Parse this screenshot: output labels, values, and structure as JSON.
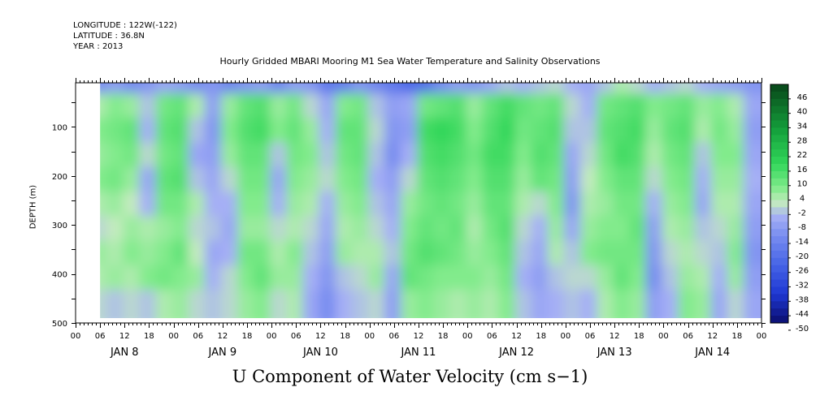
{
  "header": {
    "longitude": "LONGITUDE : 122W(-122)",
    "latitude": "LATITUDE : 36.8N",
    "year": "YEAR : 2013"
  },
  "chart_data": {
    "type": "heatmap",
    "title": "Hourly Gridded MBARI Mooring M1 Sea Water Temperature and Salinity Observations",
    "xlabel": "U Component of Water Velocity (cm s−1)",
    "ylabel": "DEPTH (m)",
    "xlim_hours": [
      0,
      168
    ],
    "data_start_hour": 6,
    "data_end_hour": 168,
    "ylim": [
      500,
      10
    ],
    "yticks": [
      100,
      200,
      300,
      400,
      500
    ],
    "hour_tick_labels": [
      "00",
      "06",
      "12",
      "18",
      "00",
      "06",
      "12",
      "18",
      "00",
      "06",
      "12",
      "18",
      "00",
      "06",
      "12",
      "18",
      "00",
      "06",
      "12",
      "18",
      "00",
      "06",
      "12",
      "18",
      "00",
      "06",
      "12",
      "18",
      "00"
    ],
    "day_labels": [
      "JAN  8",
      "JAN  9",
      "JAN 10",
      "JAN 11",
      "JAN 12",
      "JAN 13",
      "JAN 14"
    ],
    "colorbar": {
      "labels": [
        "46",
        "40",
        "34",
        "28",
        "22",
        "16",
        "10",
        "4",
        "-2",
        "-8",
        "-14",
        "-20",
        "-26",
        "-32",
        "-38",
        "-44",
        "-50"
      ],
      "range": [
        -50,
        49
      ],
      "step": 3
    },
    "field_columns": [
      {
        "hour": 6,
        "u": [
          -14,
          2,
          6,
          4,
          6,
          2,
          -2,
          4,
          2,
          -2
        ]
      },
      {
        "hour": 10,
        "u": [
          -10,
          6,
          8,
          6,
          8,
          4,
          0,
          2,
          4,
          -4
        ]
      },
      {
        "hour": 14,
        "u": [
          -14,
          4,
          10,
          8,
          4,
          0,
          4,
          6,
          2,
          -2
        ]
      },
      {
        "hour": 18,
        "u": [
          -12,
          -4,
          -6,
          -2,
          -8,
          -6,
          2,
          4,
          6,
          -4
        ]
      },
      {
        "hour": 22,
        "u": [
          -8,
          8,
          10,
          8,
          10,
          8,
          4,
          6,
          8,
          2
        ]
      },
      {
        "hour": 26,
        "u": [
          -10,
          10,
          12,
          10,
          12,
          8,
          6,
          10,
          6,
          4
        ]
      },
      {
        "hour": 30,
        "u": [
          -14,
          2,
          -4,
          -8,
          -4,
          2,
          -2,
          0,
          4,
          -2
        ]
      },
      {
        "hour": 34,
        "u": [
          -12,
          -10,
          -12,
          -10,
          -8,
          -6,
          -4,
          -8,
          -6,
          -4
        ]
      },
      {
        "hour": 38,
        "u": [
          -16,
          4,
          6,
          4,
          -2,
          -6,
          -8,
          -6,
          -2,
          -2
        ]
      },
      {
        "hour": 42,
        "u": [
          -12,
          10,
          12,
          10,
          8,
          6,
          4,
          8,
          6,
          4
        ]
      },
      {
        "hour": 46,
        "u": [
          -10,
          12,
          14,
          10,
          8,
          6,
          4,
          8,
          10,
          6
        ]
      },
      {
        "hour": 50,
        "u": [
          -16,
          4,
          6,
          -4,
          -8,
          -6,
          -2,
          2,
          4,
          -2
        ]
      },
      {
        "hour": 54,
        "u": [
          -10,
          8,
          10,
          8,
          6,
          4,
          2,
          6,
          4,
          2
        ]
      },
      {
        "hour": 58,
        "u": [
          -12,
          -2,
          4,
          6,
          4,
          2,
          -2,
          -4,
          -6,
          -8
        ]
      },
      {
        "hour": 62,
        "u": [
          -20,
          -8,
          -6,
          -4,
          -2,
          -6,
          -8,
          -10,
          -12,
          -14
        ]
      },
      {
        "hour": 66,
        "u": [
          -18,
          6,
          10,
          8,
          6,
          4,
          2,
          4,
          -4,
          -6
        ]
      },
      {
        "hour": 70,
        "u": [
          -12,
          8,
          10,
          10,
          8,
          6,
          4,
          2,
          -2,
          -4
        ]
      },
      {
        "hour": 74,
        "u": [
          -16,
          -4,
          -2,
          -4,
          -6,
          -4,
          -2,
          2,
          4,
          -2
        ]
      },
      {
        "hour": 78,
        "u": [
          -20,
          -10,
          -12,
          -14,
          -10,
          -8,
          -6,
          -4,
          -8,
          -10
        ]
      },
      {
        "hour": 82,
        "u": [
          -24,
          -8,
          -10,
          -6,
          -2,
          4,
          6,
          8,
          10,
          4
        ]
      },
      {
        "hour": 86,
        "u": [
          -22,
          8,
          14,
          12,
          10,
          8,
          10,
          12,
          8,
          6
        ]
      },
      {
        "hour": 90,
        "u": [
          -14,
          10,
          16,
          14,
          12,
          10,
          8,
          10,
          6,
          4
        ]
      },
      {
        "hour": 94,
        "u": [
          -10,
          12,
          14,
          12,
          10,
          8,
          10,
          8,
          6,
          2
        ]
      },
      {
        "hour": 98,
        "u": [
          -12,
          4,
          6,
          8,
          6,
          4,
          2,
          4,
          6,
          4
        ]
      },
      {
        "hour": 102,
        "u": [
          -8,
          10,
          12,
          14,
          12,
          10,
          8,
          6,
          4,
          2
        ]
      },
      {
        "hour": 106,
        "u": [
          -4,
          14,
          16,
          14,
          12,
          10,
          12,
          10,
          8,
          6
        ]
      },
      {
        "hour": 110,
        "u": [
          -6,
          10,
          8,
          6,
          4,
          2,
          -2,
          -4,
          -6,
          -4
        ]
      },
      {
        "hour": 114,
        "u": [
          -4,
          8,
          10,
          12,
          10,
          -2,
          -6,
          -8,
          -10,
          -8
        ]
      },
      {
        "hour": 118,
        "u": [
          -2,
          10,
          12,
          10,
          8,
          6,
          4,
          2,
          -4,
          -6
        ]
      },
      {
        "hour": 122,
        "u": [
          -6,
          -2,
          -4,
          -8,
          -10,
          -12,
          -8,
          -4,
          -2,
          -4
        ]
      },
      {
        "hour": 126,
        "u": [
          -8,
          -6,
          -4,
          -2,
          0,
          2,
          4,
          6,
          -2,
          -6
        ]
      },
      {
        "hour": 130,
        "u": [
          -4,
          8,
          10,
          8,
          6,
          4,
          6,
          8,
          4,
          2
        ]
      },
      {
        "hour": 134,
        "u": [
          2,
          10,
          12,
          14,
          10,
          8,
          6,
          8,
          10,
          6
        ]
      },
      {
        "hour": 138,
        "u": [
          -2,
          12,
          14,
          12,
          10,
          8,
          10,
          8,
          6,
          4
        ]
      },
      {
        "hour": 142,
        "u": [
          -6,
          6,
          4,
          2,
          -2,
          -6,
          -10,
          -12,
          -14,
          -10
        ]
      },
      {
        "hour": 146,
        "u": [
          -4,
          8,
          10,
          8,
          6,
          4,
          2,
          -2,
          -4,
          -6
        ]
      },
      {
        "hour": 150,
        "u": [
          -2,
          10,
          12,
          10,
          8,
          6,
          4,
          2,
          4,
          6
        ]
      },
      {
        "hour": 154,
        "u": [
          -6,
          4,
          2,
          -4,
          -6,
          -8,
          -4,
          -2,
          2,
          4
        ]
      },
      {
        "hour": 158,
        "u": [
          -8,
          6,
          8,
          6,
          4,
          2,
          -2,
          -4,
          -6,
          -8
        ]
      },
      {
        "hour": 162,
        "u": [
          -10,
          2,
          4,
          6,
          4,
          2,
          4,
          6,
          4,
          -2
        ]
      },
      {
        "hour": 166,
        "u": [
          -12,
          -8,
          -10,
          -8,
          -6,
          -8,
          -10,
          -12,
          -10,
          -8
        ]
      }
    ],
    "field_depths": [
      20,
      70,
      120,
      170,
      220,
      270,
      320,
      370,
      420,
      470
    ]
  }
}
